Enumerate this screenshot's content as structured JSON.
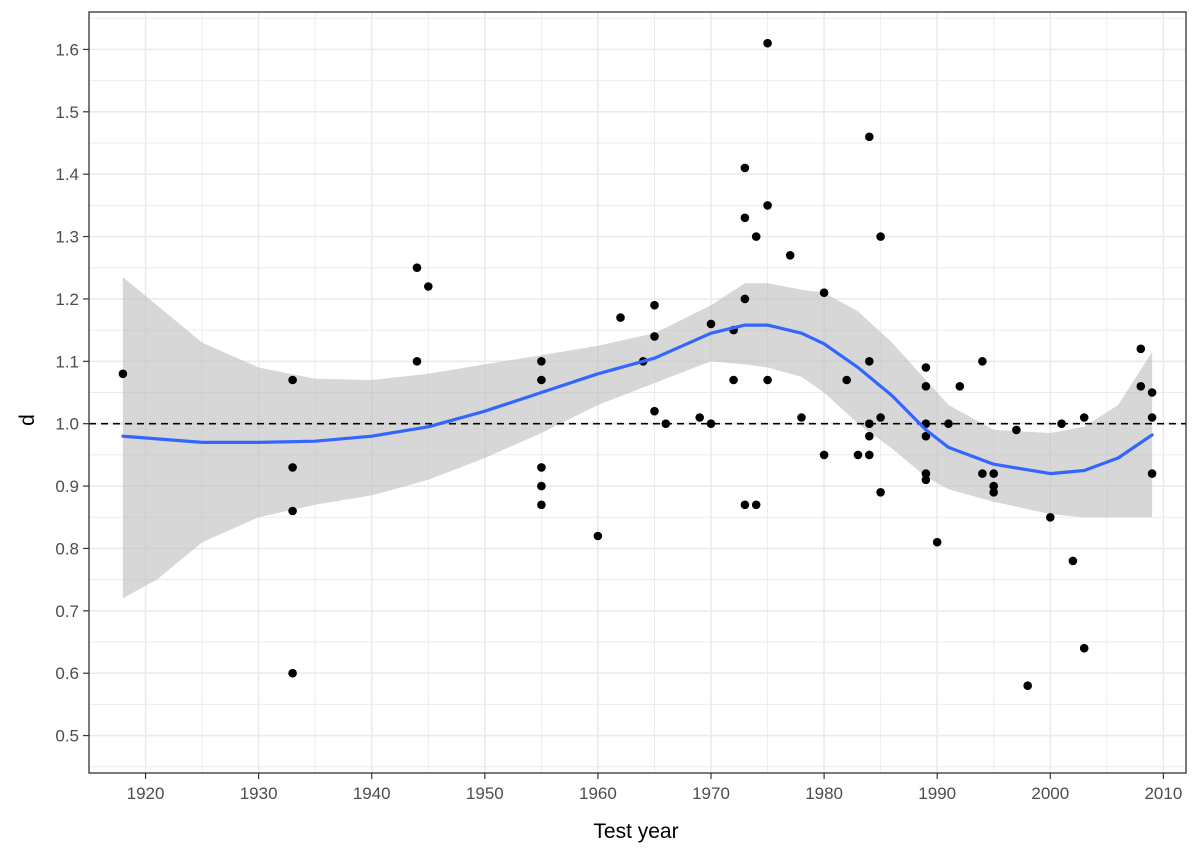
{
  "chart_data": {
    "type": "scatter",
    "title": "",
    "xlabel": "Test year",
    "ylabel": "d",
    "xlim": [
      1915,
      2012
    ],
    "ylim": [
      0.44,
      1.66
    ],
    "x_ticks": [
      1920,
      1930,
      1940,
      1950,
      1960,
      1970,
      1980,
      1990,
      2000,
      2010
    ],
    "x_tick_labels": [
      "1920",
      "1930",
      "1940",
      "1950",
      "1960",
      "1970",
      "1980",
      "1990",
      "2000",
      "2010"
    ],
    "x_minor_ticks": [
      1915,
      1925,
      1935,
      1945,
      1955,
      1965,
      1975,
      1985,
      1995,
      2005
    ],
    "y_ticks": [
      0.5,
      0.6,
      0.7,
      0.8,
      0.9,
      1.0,
      1.1,
      1.2,
      1.3,
      1.4,
      1.5,
      1.6
    ],
    "y_tick_labels": [
      "0.5",
      "0.6",
      "0.7",
      "0.8",
      "0.9",
      "1.0",
      "1.1",
      "1.2",
      "1.3",
      "1.4",
      "1.5",
      "1.6"
    ],
    "y_minor_ticks": [
      0.45,
      0.55,
      0.65,
      0.75,
      0.85,
      0.95,
      1.05,
      1.15,
      1.25,
      1.35,
      1.45,
      1.55,
      1.65
    ],
    "grid": true,
    "reference_line": {
      "y": 1.0,
      "style": "dashed",
      "color": "#000000"
    },
    "colors": {
      "points": "#000000",
      "smooth": "#3366ff",
      "band": "#bfbfbf",
      "grid": "#ebebeb",
      "panel_border": "#333333"
    },
    "points": [
      {
        "x": 1918,
        "y": 1.08
      },
      {
        "x": 1933,
        "y": 1.07
      },
      {
        "x": 1933,
        "y": 0.93
      },
      {
        "x": 1933,
        "y": 0.86
      },
      {
        "x": 1933,
        "y": 0.6
      },
      {
        "x": 1944,
        "y": 1.25
      },
      {
        "x": 1944,
        "y": 1.1
      },
      {
        "x": 1945,
        "y": 1.22
      },
      {
        "x": 1955,
        "y": 1.1
      },
      {
        "x": 1955,
        "y": 1.07
      },
      {
        "x": 1955,
        "y": 0.93
      },
      {
        "x": 1955,
        "y": 0.9
      },
      {
        "x": 1955,
        "y": 0.87
      },
      {
        "x": 1960,
        "y": 0.82
      },
      {
        "x": 1962,
        "y": 1.17
      },
      {
        "x": 1964,
        "y": 1.1
      },
      {
        "x": 1965,
        "y": 1.19
      },
      {
        "x": 1965,
        "y": 1.14
      },
      {
        "x": 1965,
        "y": 1.02
      },
      {
        "x": 1966,
        "y": 1.0
      },
      {
        "x": 1969,
        "y": 1.01
      },
      {
        "x": 1970,
        "y": 1.16
      },
      {
        "x": 1970,
        "y": 1.0
      },
      {
        "x": 1972,
        "y": 1.15
      },
      {
        "x": 1972,
        "y": 1.07
      },
      {
        "x": 1973,
        "y": 1.41
      },
      {
        "x": 1973,
        "y": 1.33
      },
      {
        "x": 1973,
        "y": 1.2
      },
      {
        "x": 1973,
        "y": 0.87
      },
      {
        "x": 1974,
        "y": 1.3
      },
      {
        "x": 1974,
        "y": 0.87
      },
      {
        "x": 1975,
        "y": 1.61
      },
      {
        "x": 1975,
        "y": 1.35
      },
      {
        "x": 1975,
        "y": 1.07
      },
      {
        "x": 1977,
        "y": 1.27
      },
      {
        "x": 1978,
        "y": 1.01
      },
      {
        "x": 1980,
        "y": 1.21
      },
      {
        "x": 1980,
        "y": 0.95
      },
      {
        "x": 1982,
        "y": 1.07
      },
      {
        "x": 1983,
        "y": 0.95
      },
      {
        "x": 1984,
        "y": 1.46
      },
      {
        "x": 1984,
        "y": 1.1
      },
      {
        "x": 1984,
        "y": 1.0
      },
      {
        "x": 1984,
        "y": 0.98
      },
      {
        "x": 1984,
        "y": 0.95
      },
      {
        "x": 1985,
        "y": 1.3
      },
      {
        "x": 1985,
        "y": 1.01
      },
      {
        "x": 1985,
        "y": 0.89
      },
      {
        "x": 1989,
        "y": 1.09
      },
      {
        "x": 1989,
        "y": 1.06
      },
      {
        "x": 1989,
        "y": 1.0
      },
      {
        "x": 1989,
        "y": 0.98
      },
      {
        "x": 1989,
        "y": 0.92
      },
      {
        "x": 1989,
        "y": 0.91
      },
      {
        "x": 1990,
        "y": 0.81
      },
      {
        "x": 1991,
        "y": 1.0
      },
      {
        "x": 1992,
        "y": 1.06
      },
      {
        "x": 1994,
        "y": 1.1
      },
      {
        "x": 1994,
        "y": 0.92
      },
      {
        "x": 1995,
        "y": 0.92
      },
      {
        "x": 1995,
        "y": 0.9
      },
      {
        "x": 1995,
        "y": 0.89
      },
      {
        "x": 1997,
        "y": 0.99
      },
      {
        "x": 1998,
        "y": 0.58
      },
      {
        "x": 2000,
        "y": 0.85
      },
      {
        "x": 2001,
        "y": 1.0
      },
      {
        "x": 2002,
        "y": 0.78
      },
      {
        "x": 2003,
        "y": 1.01
      },
      {
        "x": 2003,
        "y": 0.64
      },
      {
        "x": 2008,
        "y": 1.12
      },
      {
        "x": 2008,
        "y": 1.06
      },
      {
        "x": 2009,
        "y": 1.05
      },
      {
        "x": 2009,
        "y": 1.01
      },
      {
        "x": 2009,
        "y": 0.92
      }
    ],
    "smooth": {
      "method": "loess",
      "curve": [
        {
          "x": 1918,
          "y": 0.98
        },
        {
          "x": 1925,
          "y": 0.97
        },
        {
          "x": 1930,
          "y": 0.97
        },
        {
          "x": 1935,
          "y": 0.972
        },
        {
          "x": 1940,
          "y": 0.98
        },
        {
          "x": 1945,
          "y": 0.995
        },
        {
          "x": 1950,
          "y": 1.02
        },
        {
          "x": 1955,
          "y": 1.05
        },
        {
          "x": 1960,
          "y": 1.08
        },
        {
          "x": 1965,
          "y": 1.105
        },
        {
          "x": 1970,
          "y": 1.145
        },
        {
          "x": 1973,
          "y": 1.158
        },
        {
          "x": 1975,
          "y": 1.158
        },
        {
          "x": 1978,
          "y": 1.145
        },
        {
          "x": 1980,
          "y": 1.128
        },
        {
          "x": 1983,
          "y": 1.09
        },
        {
          "x": 1986,
          "y": 1.045
        },
        {
          "x": 1989,
          "y": 0.99
        },
        {
          "x": 1991,
          "y": 0.962
        },
        {
          "x": 1995,
          "y": 0.935
        },
        {
          "x": 2000,
          "y": 0.92
        },
        {
          "x": 2003,
          "y": 0.925
        },
        {
          "x": 2006,
          "y": 0.945
        },
        {
          "x": 2009,
          "y": 0.982
        }
      ],
      "upper": [
        {
          "x": 1918,
          "y": 1.235
        },
        {
          "x": 1921,
          "y": 1.19
        },
        {
          "x": 1925,
          "y": 1.13
        },
        {
          "x": 1930,
          "y": 1.09
        },
        {
          "x": 1935,
          "y": 1.072
        },
        {
          "x": 1940,
          "y": 1.07
        },
        {
          "x": 1945,
          "y": 1.08
        },
        {
          "x": 1950,
          "y": 1.095
        },
        {
          "x": 1955,
          "y": 1.11
        },
        {
          "x": 1960,
          "y": 1.125
        },
        {
          "x": 1965,
          "y": 1.145
        },
        {
          "x": 1970,
          "y": 1.19
        },
        {
          "x": 1973,
          "y": 1.225
        },
        {
          "x": 1975,
          "y": 1.225
        },
        {
          "x": 1978,
          "y": 1.215
        },
        {
          "x": 1980,
          "y": 1.21
        },
        {
          "x": 1983,
          "y": 1.18
        },
        {
          "x": 1986,
          "y": 1.13
        },
        {
          "x": 1989,
          "y": 1.07
        },
        {
          "x": 1991,
          "y": 1.03
        },
        {
          "x": 1995,
          "y": 0.99
        },
        {
          "x": 2000,
          "y": 0.985
        },
        {
          "x": 2003,
          "y": 0.995
        },
        {
          "x": 2006,
          "y": 1.03
        },
        {
          "x": 2009,
          "y": 1.115
        }
      ],
      "lower": [
        {
          "x": 1918,
          "y": 0.72
        },
        {
          "x": 1921,
          "y": 0.75
        },
        {
          "x": 1925,
          "y": 0.81
        },
        {
          "x": 1930,
          "y": 0.85
        },
        {
          "x": 1935,
          "y": 0.87
        },
        {
          "x": 1940,
          "y": 0.885
        },
        {
          "x": 1945,
          "y": 0.91
        },
        {
          "x": 1950,
          "y": 0.945
        },
        {
          "x": 1955,
          "y": 0.985
        },
        {
          "x": 1960,
          "y": 1.03
        },
        {
          "x": 1965,
          "y": 1.065
        },
        {
          "x": 1970,
          "y": 1.1
        },
        {
          "x": 1973,
          "y": 1.095
        },
        {
          "x": 1975,
          "y": 1.09
        },
        {
          "x": 1978,
          "y": 1.075
        },
        {
          "x": 1980,
          "y": 1.05
        },
        {
          "x": 1983,
          "y": 1.0
        },
        {
          "x": 1986,
          "y": 0.96
        },
        {
          "x": 1989,
          "y": 0.915
        },
        {
          "x": 1991,
          "y": 0.895
        },
        {
          "x": 1995,
          "y": 0.875
        },
        {
          "x": 2000,
          "y": 0.855
        },
        {
          "x": 2003,
          "y": 0.85
        },
        {
          "x": 2006,
          "y": 0.85
        },
        {
          "x": 2009,
          "y": 0.85
        }
      ]
    }
  }
}
